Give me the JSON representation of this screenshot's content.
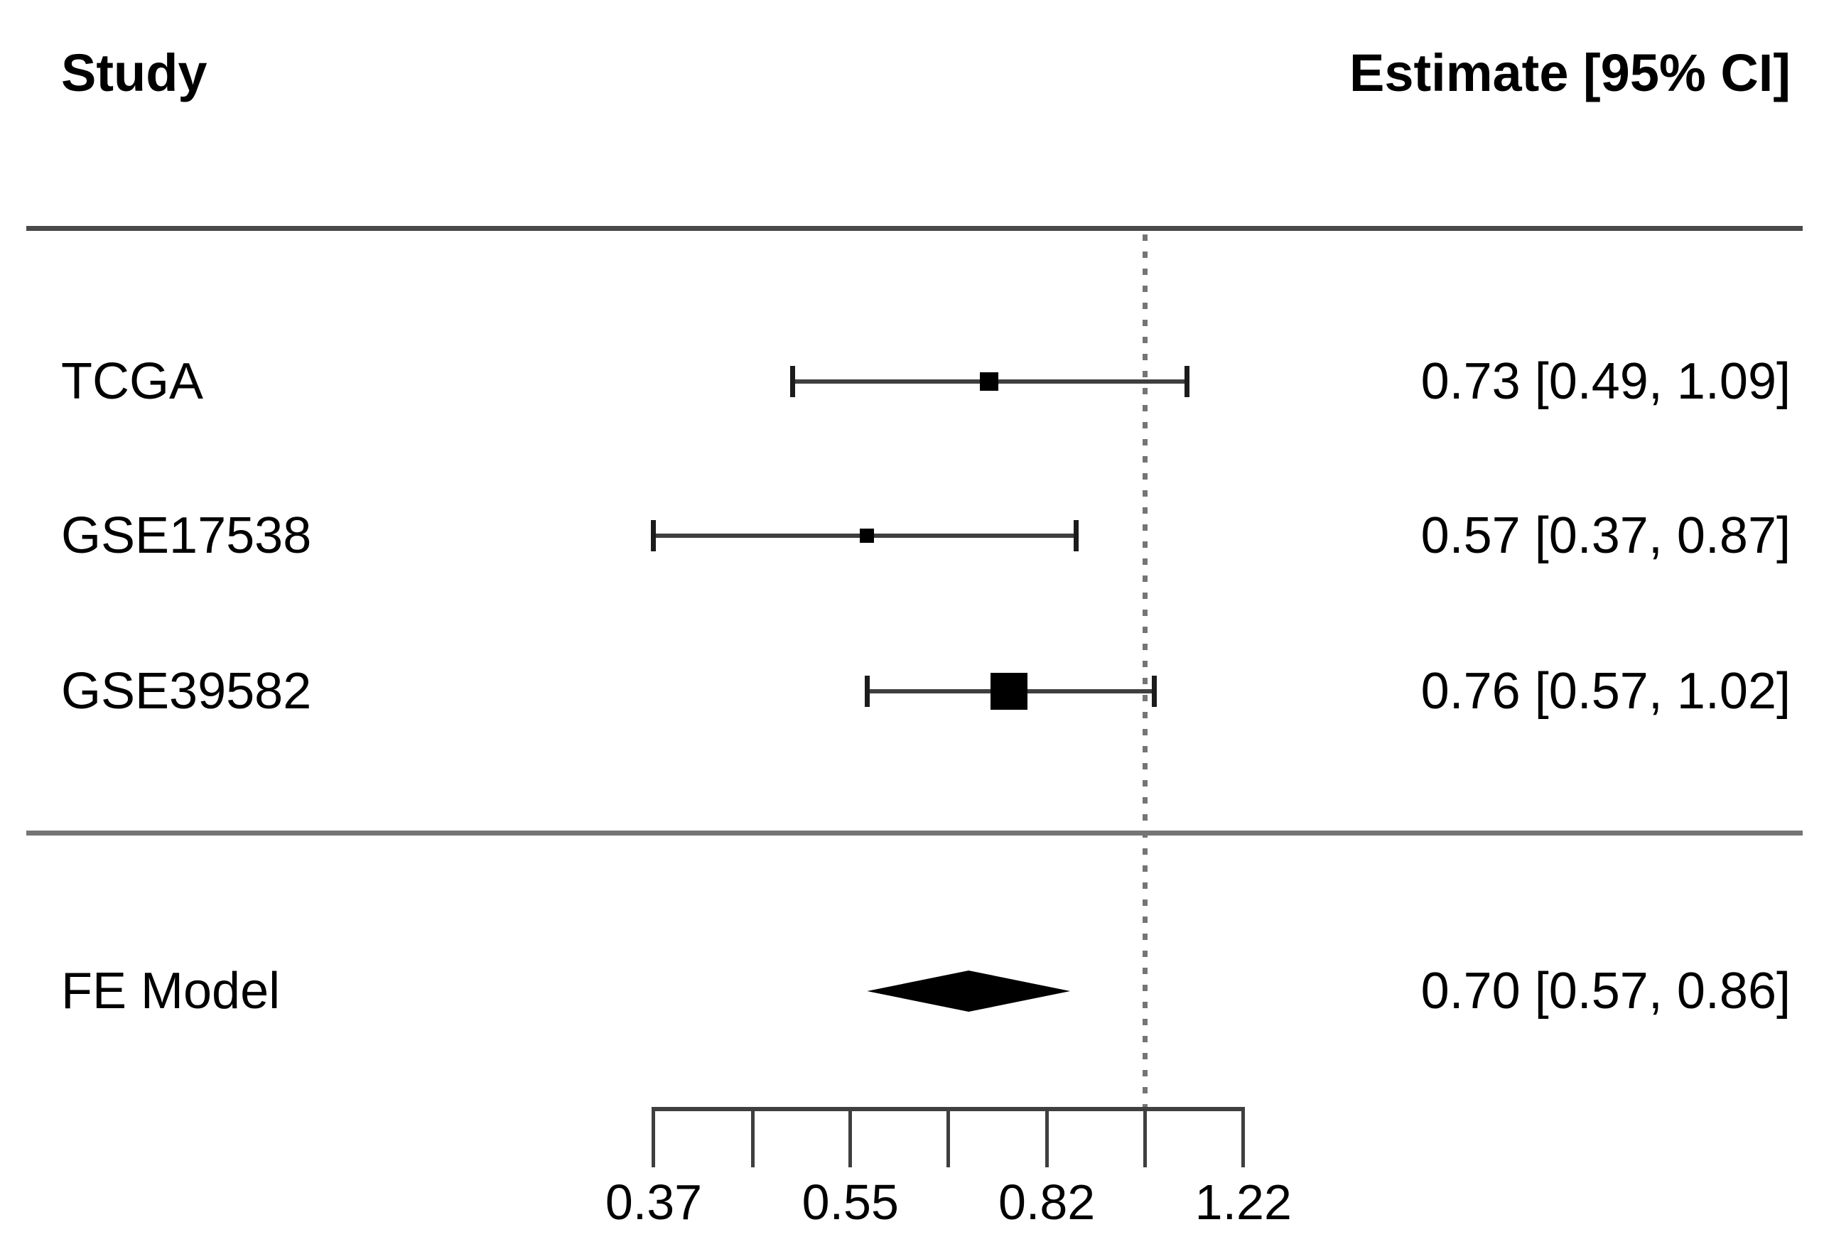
{
  "header": {
    "study_column": "Study",
    "estimate_column": "Estimate [95% CI]"
  },
  "colors": {
    "text": "#000000",
    "plot_line": "#3f3f3f",
    "marker": "#000000",
    "top_divider": "#4a4a4a",
    "bottom_divider": "#757575",
    "reference_dotted": "#757575"
  },
  "chart_data": {
    "type": "forest",
    "scale": "log",
    "title": "",
    "xlabel": "",
    "reference_line": 1.0,
    "x_axis": {
      "ticks": [
        {
          "value": 0.37,
          "label": "0.37"
        },
        {
          "value": 0.452,
          "label": ""
        },
        {
          "value": 0.551,
          "label": "0.55"
        },
        {
          "value": 0.672,
          "label": ""
        },
        {
          "value": 0.82,
          "label": "0.82"
        },
        {
          "value": 1.001,
          "label": ""
        },
        {
          "value": 1.221,
          "label": "1.22"
        }
      ]
    },
    "studies": [
      {
        "label": "TCGA",
        "estimate": 0.73,
        "ci_low": 0.49,
        "ci_high": 1.09,
        "estimate_text": "0.73 [0.49, 1.09]",
        "marker_size": 26
      },
      {
        "label": "GSE17538",
        "estimate": 0.57,
        "ci_low": 0.37,
        "ci_high": 0.87,
        "estimate_text": "0.57 [0.37, 0.87]",
        "marker_size": 20
      },
      {
        "label": "GSE39582",
        "estimate": 0.76,
        "ci_low": 0.57,
        "ci_high": 1.02,
        "estimate_text": "0.76 [0.57, 1.02]",
        "marker_size": 52
      }
    ],
    "summary": {
      "label": "FE Model",
      "estimate": 0.7,
      "ci_low": 0.57,
      "ci_high": 0.86,
      "estimate_text": "0.70 [0.57, 0.86]"
    }
  }
}
